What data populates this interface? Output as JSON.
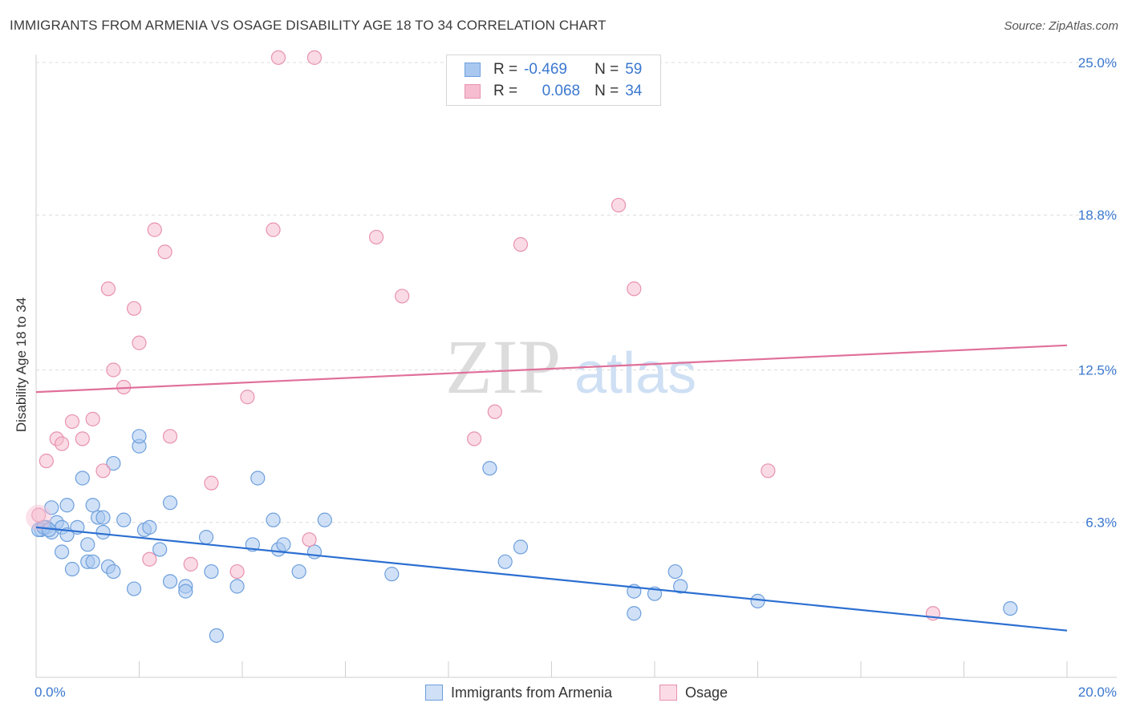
{
  "header": {
    "title": "IMMIGRANTS FROM ARMENIA VS OSAGE DISABILITY AGE 18 TO 34 CORRELATION CHART",
    "source": "Source: ZipAtlas.com"
  },
  "legend": {
    "rows": [
      {
        "r_label": "R =",
        "r_value": "-0.469",
        "n_label": "N =",
        "n_value": "59"
      },
      {
        "r_label": "R =",
        "r_value": "0.068",
        "n_label": "N =",
        "n_value": "34"
      }
    ]
  },
  "colors": {
    "blue_fill": "#a9c8f0",
    "blue_stroke": "#6e9fdc",
    "blue_line": "#2c6fd1",
    "pink_fill": "#f6bdd0",
    "pink_stroke": "#e892ae",
    "pink_line": "#e0709a",
    "tick_label": "#3b78cf"
  },
  "chart_data": {
    "type": "scatter",
    "title": "IMMIGRANTS FROM ARMENIA VS OSAGE DISABILITY AGE 18 TO 34 CORRELATION CHART",
    "xlabel": "",
    "ylabel": "Disability Age 18 to 34",
    "xlim": [
      0,
      20
    ],
    "ylim": [
      0,
      25
    ],
    "x_tick_labels": [
      "0.0%",
      "20.0%"
    ],
    "y_ticks": [
      6.3,
      12.5,
      18.8,
      25.0
    ],
    "y_tick_labels": [
      "6.3%",
      "12.5%",
      "18.8%",
      "25.0%"
    ],
    "watermark": "ZIPatlas",
    "series": [
      {
        "name": "Immigrants from Armenia",
        "color": "blue",
        "trend": {
          "x": [
            0,
            20
          ],
          "y": [
            6.1,
            1.9
          ]
        },
        "points": [
          [
            0.1,
            6.0
          ],
          [
            0.2,
            6.1
          ],
          [
            0.3,
            5.9
          ],
          [
            0.3,
            6.9
          ],
          [
            0.4,
            6.3
          ],
          [
            0.5,
            6.1
          ],
          [
            0.5,
            5.1
          ],
          [
            0.6,
            7.0
          ],
          [
            0.6,
            5.8
          ],
          [
            0.7,
            4.4
          ],
          [
            0.8,
            6.1
          ],
          [
            0.9,
            8.1
          ],
          [
            1.0,
            4.7
          ],
          [
            1.0,
            5.4
          ],
          [
            1.1,
            4.7
          ],
          [
            1.1,
            7.0
          ],
          [
            1.2,
            6.5
          ],
          [
            1.3,
            5.9
          ],
          [
            1.3,
            6.5
          ],
          [
            1.4,
            4.5
          ],
          [
            1.5,
            4.3
          ],
          [
            1.5,
            8.7
          ],
          [
            1.7,
            6.4
          ],
          [
            1.9,
            3.6
          ],
          [
            2.0,
            9.4
          ],
          [
            2.0,
            9.8
          ],
          [
            2.1,
            6.0
          ],
          [
            2.2,
            6.1
          ],
          [
            2.4,
            5.2
          ],
          [
            2.6,
            7.1
          ],
          [
            2.6,
            3.9
          ],
          [
            2.9,
            3.7
          ],
          [
            2.9,
            3.5
          ],
          [
            3.3,
            5.7
          ],
          [
            3.4,
            4.3
          ],
          [
            3.5,
            1.7
          ],
          [
            3.9,
            3.7
          ],
          [
            4.2,
            5.4
          ],
          [
            4.3,
            8.1
          ],
          [
            4.6,
            6.4
          ],
          [
            4.7,
            5.2
          ],
          [
            4.8,
            5.4
          ],
          [
            5.1,
            4.3
          ],
          [
            5.4,
            5.1
          ],
          [
            5.6,
            6.4
          ],
          [
            6.9,
            4.2
          ],
          [
            8.8,
            8.5
          ],
          [
            9.1,
            4.7
          ],
          [
            9.4,
            5.3
          ],
          [
            11.6,
            2.6
          ],
          [
            11.6,
            3.5
          ],
          [
            12.0,
            3.4
          ],
          [
            12.4,
            4.3
          ],
          [
            12.5,
            3.7
          ],
          [
            14.0,
            3.1
          ],
          [
            18.9,
            2.8
          ],
          [
            0.05,
            6.0
          ],
          [
            0.15,
            6.1
          ],
          [
            0.25,
            6.0
          ]
        ]
      },
      {
        "name": "Osage",
        "color": "pink",
        "trend": {
          "x": [
            0,
            20
          ],
          "y": [
            11.6,
            13.5
          ]
        },
        "points": [
          [
            0.05,
            6.6
          ],
          [
            0.2,
            8.8
          ],
          [
            0.4,
            9.7
          ],
          [
            0.5,
            9.5
          ],
          [
            0.7,
            10.4
          ],
          [
            0.9,
            9.7
          ],
          [
            1.1,
            10.5
          ],
          [
            1.3,
            8.4
          ],
          [
            1.4,
            15.8
          ],
          [
            1.5,
            12.5
          ],
          [
            1.7,
            11.8
          ],
          [
            1.9,
            15.0
          ],
          [
            2.0,
            13.6
          ],
          [
            2.2,
            4.8
          ],
          [
            2.3,
            18.2
          ],
          [
            2.5,
            17.3
          ],
          [
            2.6,
            9.8
          ],
          [
            3.0,
            4.6
          ],
          [
            3.4,
            7.9
          ],
          [
            3.9,
            4.3
          ],
          [
            4.1,
            11.4
          ],
          [
            4.6,
            18.2
          ],
          [
            4.7,
            25.2
          ],
          [
            5.3,
            5.6
          ],
          [
            5.4,
            25.2
          ],
          [
            6.6,
            17.9
          ],
          [
            7.1,
            15.5
          ],
          [
            8.5,
            9.7
          ],
          [
            8.9,
            10.8
          ],
          [
            9.4,
            17.6
          ],
          [
            11.3,
            19.2
          ],
          [
            11.6,
            15.8
          ],
          [
            14.2,
            8.4
          ],
          [
            17.4,
            2.6
          ]
        ]
      }
    ]
  },
  "bottom_legend": {
    "items": [
      {
        "label": "Immigrants from Armenia"
      },
      {
        "label": "Osage"
      }
    ]
  }
}
